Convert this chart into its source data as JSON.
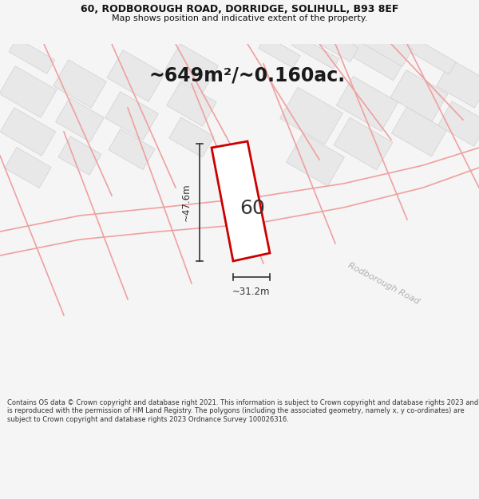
{
  "title_line1": "60, RODBOROUGH ROAD, DORRIDGE, SOLIHULL, B93 8EF",
  "title_line2": "Map shows position and indicative extent of the property.",
  "area_text": "~649m²/~0.160ac.",
  "property_number": "60",
  "dim_width": "~31.2m",
  "dim_height": "~47.6m",
  "road_label": "Rodborough Road",
  "footer_text": "Contains OS data © Crown copyright and database right 2021. This information is subject to Crown copyright and database rights 2023 and is reproduced with the permission of HM Land Registry. The polygons (including the associated geometry, namely x, y co-ordinates) are subject to Crown copyright and database rights 2023 Ordnance Survey 100026316.",
  "bg_color": "#f5f5f5",
  "map_bg": "#ffffff",
  "property_fill": "#ffffff",
  "property_edge": "#cc0000",
  "road_color": "#f0a0a0",
  "building_fill": "#e8e8e8",
  "building_edge": "#d0d0d0",
  "dim_color": "#333333",
  "text_color": "#111111",
  "footer_color": "#333333"
}
